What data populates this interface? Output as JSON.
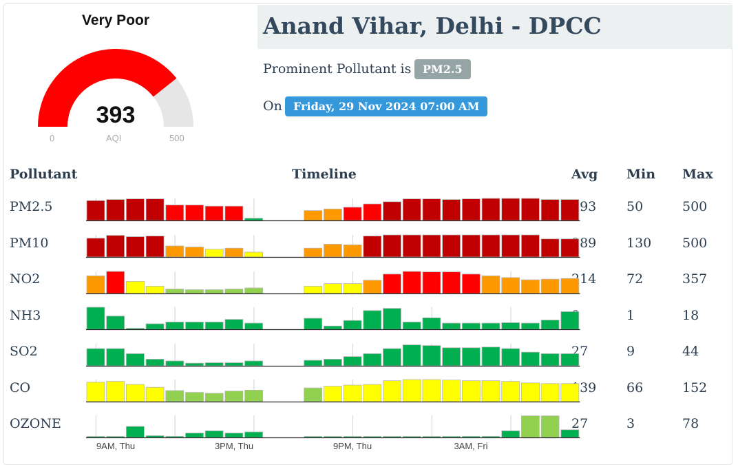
{
  "gauge": {
    "category": "Very Poor",
    "value": 393,
    "min_label": "0",
    "max_label": "500",
    "unit_label": "AQI",
    "fraction": 0.786,
    "fill_color": "#ff0000",
    "track_color": "#e6e6e6"
  },
  "station": {
    "title": "Anand Vihar, Delhi - DPCC",
    "prominent_prefix": "Prominent Pollutant is",
    "prominent": "PM2.5",
    "on_prefix": "On",
    "datetime": "Friday, 29 Nov 2024 07:00 AM"
  },
  "table": {
    "headers": {
      "pollutant": "Pollutant",
      "timeline": "Timeline",
      "avg": "Avg",
      "min": "Min",
      "max": "Max"
    },
    "rows": [
      {
        "name": "PM2.5",
        "avg": "393",
        "min": "50",
        "max": "500"
      },
      {
        "name": "PM10",
        "avg": "389",
        "min": "130",
        "max": "500"
      },
      {
        "name": "NO2",
        "avg": "214",
        "min": "72",
        "max": "357"
      },
      {
        "name": "NH3",
        "avg": "9",
        "min": "1",
        "max": "18"
      },
      {
        "name": "SO2",
        "avg": "27",
        "min": "9",
        "max": "44"
      },
      {
        "name": "CO",
        "avg": "139",
        "min": "66",
        "max": "152"
      },
      {
        "name": "OZONE",
        "avg": "27",
        "min": "3",
        "max": "78"
      }
    ]
  },
  "colors": {
    "good": "#00b050",
    "satisfactory": "#92d050",
    "moderate": "#ffff00",
    "poor": "#ff9900",
    "very_poor": "#ff0000",
    "severe": "#c00000"
  },
  "chart_data": {
    "type": "bar",
    "x_tick_labels": [
      "9AM, Thu",
      "3PM, Thu",
      "9PM, Thu",
      "3AM, Fri"
    ],
    "series": [
      {
        "name": "PM2.5",
        "values": [
          0.9,
          0.95,
          0.98,
          0.98,
          0.7,
          0.7,
          0.65,
          0.65,
          0.1,
          null,
          null,
          0.45,
          0.52,
          0.6,
          0.75,
          0.85,
          0.98,
          0.98,
          0.95,
          0.98,
          1.0,
          1.0,
          1.0,
          0.95,
          0.95
        ],
        "colors": [
          "severe",
          "severe",
          "severe",
          "severe",
          "very_poor",
          "very_poor",
          "very_poor",
          "very_poor",
          "good",
          null,
          null,
          "poor",
          "poor",
          "very_poor",
          "very_poor",
          "severe",
          "severe",
          "severe",
          "severe",
          "severe",
          "severe",
          "severe",
          "severe",
          "severe",
          "severe"
        ]
      },
      {
        "name": "PM10",
        "values": [
          0.85,
          0.98,
          0.92,
          0.95,
          0.5,
          0.45,
          0.35,
          0.4,
          0.22,
          null,
          null,
          0.4,
          0.58,
          0.55,
          0.95,
          1.0,
          1.0,
          1.0,
          1.0,
          1.0,
          1.0,
          1.0,
          1.0,
          0.82,
          0.82
        ],
        "colors": [
          "severe",
          "severe",
          "severe",
          "severe",
          "poor",
          "poor",
          "moderate",
          "poor",
          "moderate",
          null,
          null,
          "poor",
          "poor",
          "poor",
          "severe",
          "severe",
          "severe",
          "severe",
          "severe",
          "severe",
          "severe",
          "severe",
          "severe",
          "severe",
          "severe"
        ]
      },
      {
        "name": "NO2",
        "values": [
          0.8,
          1.0,
          0.55,
          0.33,
          0.2,
          0.17,
          0.17,
          0.2,
          0.25,
          null,
          null,
          0.33,
          0.45,
          0.45,
          0.6,
          0.88,
          1.0,
          0.98,
          0.98,
          0.88,
          0.8,
          0.72,
          0.62,
          0.65,
          0.68
        ],
        "colors": [
          "poor",
          "very_poor",
          "moderate",
          "moderate",
          "satisfactory",
          "satisfactory",
          "satisfactory",
          "satisfactory",
          "satisfactory",
          null,
          null,
          "moderate",
          "moderate",
          "moderate",
          "poor",
          "very_poor",
          "very_poor",
          "very_poor",
          "very_poor",
          "very_poor",
          "poor",
          "poor",
          "poor",
          "poor",
          "poor"
        ]
      },
      {
        "name": "NH3",
        "values": [
          1.0,
          0.6,
          0.02,
          0.25,
          0.33,
          0.33,
          0.33,
          0.45,
          0.28,
          null,
          null,
          0.5,
          0.15,
          0.4,
          0.85,
          0.95,
          0.33,
          0.52,
          0.28,
          0.28,
          0.28,
          0.3,
          0.28,
          0.42,
          0.8
        ],
        "colors": [
          "good",
          "good",
          "good",
          "good",
          "good",
          "good",
          "good",
          "good",
          "good",
          null,
          null,
          "good",
          "good",
          "good",
          "good",
          "good",
          "good",
          "good",
          "good",
          "good",
          "good",
          "good",
          "good",
          "good",
          "good"
        ]
      },
      {
        "name": "SO2",
        "values": [
          0.78,
          0.78,
          0.55,
          0.3,
          0.22,
          0.12,
          0.14,
          0.14,
          0.22,
          null,
          null,
          0.25,
          0.3,
          0.42,
          0.55,
          0.78,
          0.95,
          0.92,
          0.82,
          0.82,
          0.85,
          0.78,
          0.62,
          0.55,
          0.55
        ],
        "colors": [
          "good",
          "good",
          "good",
          "good",
          "good",
          "good",
          "good",
          "good",
          "good",
          null,
          null,
          "good",
          "good",
          "good",
          "good",
          "good",
          "good",
          "good",
          "good",
          "good",
          "good",
          "good",
          "good",
          "good",
          "good"
        ]
      },
      {
        "name": "CO",
        "values": [
          0.88,
          0.92,
          0.78,
          0.65,
          0.5,
          0.42,
          0.38,
          0.48,
          0.52,
          null,
          null,
          0.62,
          0.7,
          0.75,
          0.78,
          0.95,
          1.0,
          1.0,
          0.98,
          0.95,
          0.95,
          0.92,
          0.85,
          0.82,
          0.82
        ],
        "colors": [
          "moderate",
          "moderate",
          "moderate",
          "moderate",
          "satisfactory",
          "satisfactory",
          "satisfactory",
          "satisfactory",
          "satisfactory",
          null,
          null,
          "satisfactory",
          "moderate",
          "moderate",
          "moderate",
          "moderate",
          "moderate",
          "moderate",
          "moderate",
          "moderate",
          "moderate",
          "moderate",
          "moderate",
          "moderate",
          "moderate"
        ]
      },
      {
        "name": "OZONE",
        "values": [
          0.02,
          0.02,
          0.5,
          0.08,
          0.05,
          0.2,
          0.3,
          0.2,
          0.25,
          null,
          null,
          0.03,
          0.03,
          0.03,
          0.03,
          0.03,
          0.03,
          0.03,
          0.03,
          0.05,
          0.05,
          0.3,
          0.98,
          0.98,
          0.35
        ],
        "colors": [
          "good",
          "good",
          "good",
          "good",
          "good",
          "good",
          "good",
          "good",
          "good",
          null,
          null,
          "good",
          "good",
          "good",
          "good",
          "good",
          "good",
          "good",
          "good",
          "good",
          "good",
          "good",
          "satisfactory",
          "satisfactory",
          "good"
        ]
      }
    ]
  }
}
